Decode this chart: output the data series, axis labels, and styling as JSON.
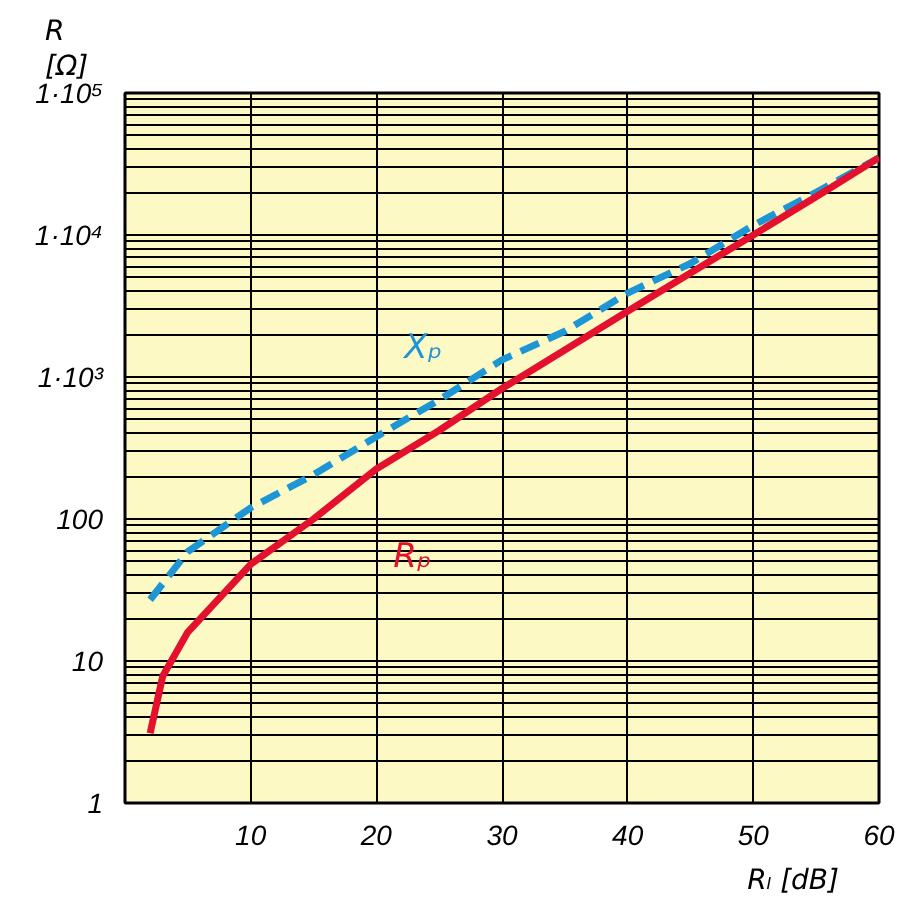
{
  "chart_data": {
    "type": "line",
    "xlabel": "Rₗ [dB]",
    "ylabel": "R\n[Ω]",
    "x": [
      2,
      3,
      5,
      10,
      15,
      20,
      25,
      30,
      35,
      40,
      45,
      50,
      55,
      60
    ],
    "series": [
      {
        "name": "Xₚ",
        "color": "#1e96d6",
        "line_style": "dashed",
        "x": [
          2,
          5,
          10,
          15,
          20,
          25,
          30,
          35,
          40,
          45,
          50,
          55,
          60
        ],
        "values": [
          27,
          59,
          120,
          205,
          380,
          690,
          1320,
          2100,
          3900,
          6300,
          11700,
          20000,
          35000
        ]
      },
      {
        "name": "Rₚ",
        "color": "#e3102e",
        "line_style": "solid",
        "values": [
          3.1,
          7.8,
          16,
          48,
          100,
          225,
          420,
          830,
          1550,
          2900,
          5400,
          10000,
          18600,
          35000
        ]
      }
    ],
    "log": "y",
    "grid": true,
    "marker": "none",
    "xlim": [
      0,
      60
    ],
    "xticks": [
      10,
      20,
      30,
      40,
      50,
      60
    ],
    "ylim": [
      1,
      100000
    ],
    "yticks": [
      {
        "value": 1,
        "label": "1"
      },
      {
        "value": 2,
        "label": null
      },
      {
        "value": 3,
        "label": null
      },
      {
        "value": 4,
        "label": null
      },
      {
        "value": 5,
        "label": null
      },
      {
        "value": 6,
        "label": null
      },
      {
        "value": 7,
        "label": null
      },
      {
        "value": 8,
        "label": null
      },
      {
        "value": 9,
        "label": null
      },
      {
        "value": 10,
        "label": "10"
      },
      {
        "value": 20,
        "label": null
      },
      {
        "value": 30,
        "label": null
      },
      {
        "value": 40,
        "label": null
      },
      {
        "value": 50,
        "label": null
      },
      {
        "value": 60,
        "label": null
      },
      {
        "value": 70,
        "label": null
      },
      {
        "value": 80,
        "label": null
      },
      {
        "value": 90,
        "label": null
      },
      {
        "value": 100,
        "label": "100"
      },
      {
        "value": 200,
        "label": null
      },
      {
        "value": 300,
        "label": null
      },
      {
        "value": 400,
        "label": null
      },
      {
        "value": 500,
        "label": null
      },
      {
        "value": 600,
        "label": null
      },
      {
        "value": 700,
        "label": null
      },
      {
        "value": 800,
        "label": null
      },
      {
        "value": 900,
        "label": null
      },
      {
        "value": 1000,
        "label": "1·10³"
      },
      {
        "value": 2000,
        "label": null
      },
      {
        "value": 3000,
        "label": null
      },
      {
        "value": 4000,
        "label": null
      },
      {
        "value": 5000,
        "label": null
      },
      {
        "value": 6000,
        "label": null
      },
      {
        "value": 7000,
        "label": null
      },
      {
        "value": 8000,
        "label": null
      },
      {
        "value": 9000,
        "label": null
      },
      {
        "value": 10000,
        "label": "1·10⁴"
      },
      {
        "value": 20000,
        "label": null
      },
      {
        "value": 30000,
        "label": null
      },
      {
        "value": 40000,
        "label": null
      },
      {
        "value": 50000,
        "label": null
      },
      {
        "value": 60000,
        "label": null
      },
      {
        "value": 70000,
        "label": null
      },
      {
        "value": 80000,
        "label": null
      },
      {
        "value": 90000,
        "label": null
      },
      {
        "value": 100000,
        "label": "1·10⁵"
      }
    ]
  }
}
